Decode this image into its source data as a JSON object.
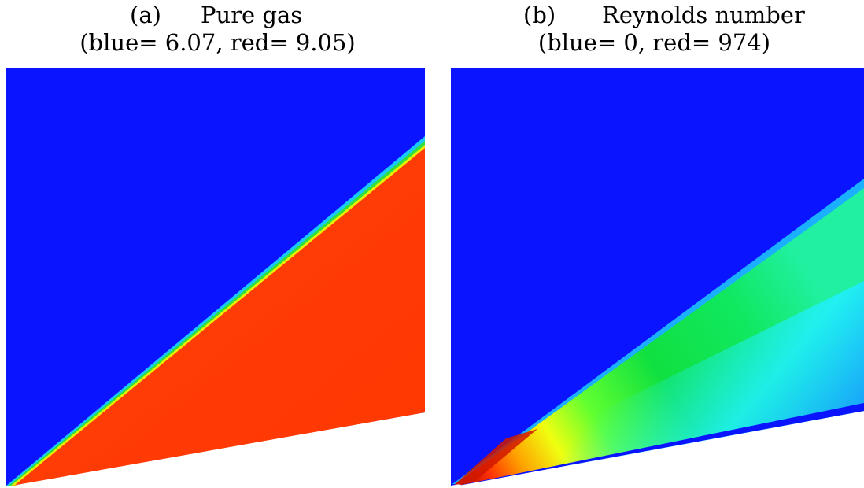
{
  "figure": {
    "panels": [
      {
        "tag": "(a)",
        "name": "Pure gas",
        "range_text": "(blue= 6.07, red= 9.05)",
        "scale": {
          "blue": 6.07,
          "red": 9.05
        },
        "colors": {
          "background": "#0a14ff",
          "region": "#ff3d05",
          "edge_yellow": "#e6f000",
          "edge_cyan": "#18c8ff",
          "edge_green": "#30e040"
        }
      },
      {
        "tag": "(b)",
        "name": "Reynolds number",
        "range_text": "(blue= 0, red= 974)",
        "scale": {
          "blue": 0,
          "red": 974
        },
        "colors": {
          "background": "#0a14ff",
          "green": "#10e040",
          "cyan": "#1af0ff",
          "yellow": "#f0ff10",
          "red": "#e02000",
          "deep_blue": "#0a14ff"
        }
      }
    ]
  }
}
